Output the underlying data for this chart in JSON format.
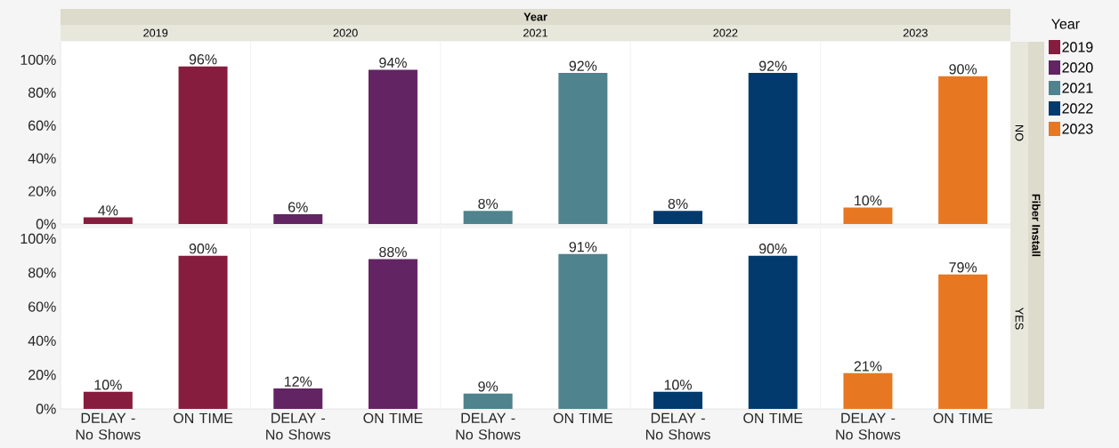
{
  "chart_data": [
    {
      "type": "bar",
      "annotations": [
        "Year",
        "2019",
        "2020",
        "2021",
        "2022",
        "2023"
      ],
      "y2label": "NO",
      "tick_labels": "y",
      "categories": [
        null,
        null,
        null,
        null,
        null,
        null,
        null,
        null,
        null,
        null
      ],
      "ylim": [
        0,
        111
      ],
      "yticks": [
        {
          "value": 0,
          "label": "0%"
        },
        {
          "value": 20,
          "label": "20%"
        },
        {
          "value": 40,
          "label": "40%"
        },
        {
          "value": 60,
          "label": "60%"
        },
        {
          "value": 80,
          "label": "80%"
        },
        {
          "value": 100,
          "label": "100%"
        }
      ],
      "values": [
        4,
        96,
        6,
        94,
        8,
        92,
        8,
        92,
        10,
        90
      ],
      "colors": [
        "#871d3e",
        "#871d3e",
        "#632463",
        "#632463",
        "#4f838d",
        "#4f838d",
        "#023a6e",
        "#023a6e",
        "#e87722",
        "#e87722"
      ],
      "value_labels": [
        "4%",
        "96%",
        "6%",
        "94%",
        "8%",
        "92%",
        "8%",
        "92%",
        "10%",
        "90%"
      ]
    },
    {
      "type": "bar",
      "annotations": [
        "Fiber Install"
      ],
      "y2label": "YES",
      "legend_title": "Year",
      "legend": "right",
      "categories": [
        "DELAY - No Shows",
        "ON TIME",
        "DELAY - No Shows",
        "ON TIME",
        "DELAY - No Shows",
        "ON TIME",
        "DELAY - No Shows",
        "ON TIME",
        "DELAY - No Shows",
        "ON TIME"
      ],
      "ylim": [
        0,
        106
      ],
      "yticks": [
        {
          "value": 0,
          "label": "0%"
        },
        {
          "value": 20,
          "label": "20%"
        },
        {
          "value": 40,
          "label": "40%"
        },
        {
          "value": 60,
          "label": "60%"
        },
        {
          "value": 80,
          "label": "80%"
        },
        {
          "value": 100,
          "label": "100%"
        }
      ],
      "series": [
        {
          "name": "2019",
          "color": "#871d3e",
          "values": [
            10,
            90,
            null,
            null,
            null,
            null,
            null,
            null,
            null,
            null
          ],
          "value_labels": [
            "10%",
            "90%",
            null,
            null,
            null,
            null,
            null,
            null,
            null,
            null
          ]
        },
        {
          "name": "2020",
          "color": "#632463",
          "values": [
            null,
            null,
            12,
            88,
            null,
            null,
            null,
            null,
            null,
            null
          ],
          "value_labels": [
            null,
            null,
            "12%",
            "88%",
            null,
            null,
            null,
            null,
            null,
            null
          ]
        },
        {
          "name": "2021",
          "color": "#4f838d",
          "values": [
            null,
            null,
            null,
            null,
            9,
            91,
            null,
            null,
            null,
            null
          ],
          "value_labels": [
            null,
            null,
            null,
            null,
            "9%",
            "91%",
            null,
            null,
            null,
            null
          ]
        },
        {
          "name": "2022",
          "color": "#023a6e",
          "values": [
            null,
            null,
            null,
            null,
            null,
            null,
            10,
            90,
            null,
            null
          ],
          "value_labels": [
            null,
            null,
            null,
            null,
            null,
            null,
            "10%",
            "90%",
            null,
            null
          ]
        },
        {
          "name": "2023",
          "color": "#e87722",
          "values": [
            null,
            null,
            null,
            null,
            null,
            null,
            null,
            null,
            21,
            79
          ],
          "value_labels": [
            null,
            null,
            null,
            null,
            null,
            null,
            null,
            null,
            "21%",
            "79%"
          ]
        }
      ]
    }
  ]
}
